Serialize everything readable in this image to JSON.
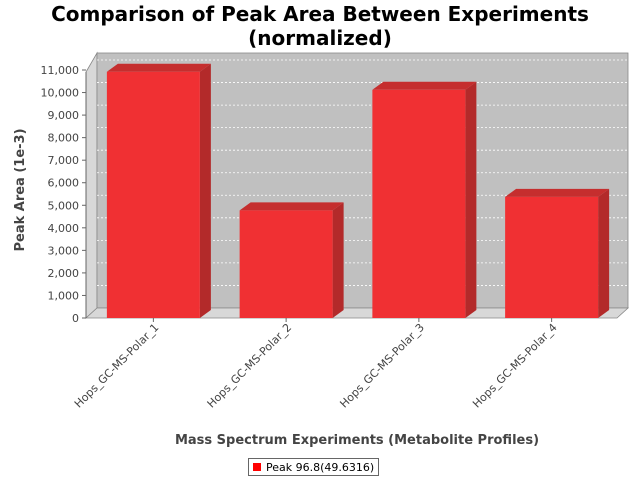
{
  "title": {
    "line1": "Comparison of Peak Area Between Experiments",
    "line2": "(normalized)"
  },
  "legend": {
    "label": "Peak 96.8(49.6316)",
    "color": "#ff0000"
  },
  "colors": {
    "bar": "#f03033",
    "bar_side": "#b32a2a",
    "bar_top": "#c52e2e",
    "plot_back": "#c0c0c0",
    "plot_wall": "#d8d8d8"
  },
  "chart_data": {
    "type": "bar",
    "title": "Comparison of Peak Area Between Experiments (normalized)",
    "xlabel": "Mass Spectrum Experiments (Metabolite Profiles)",
    "ylabel": "Peak Area (1e-3)",
    "categories": [
      "Hops_GC-MS-Polar_1",
      "Hops_GC-MS-Polar_2",
      "Hops_GC-MS-Polar_3",
      "Hops_GC-MS-Polar_4"
    ],
    "series": [
      {
        "name": "Peak 96.8(49.6316)",
        "values": [
          11100,
          4950,
          10300,
          5550
        ]
      }
    ],
    "ylim": [
      0,
      11000
    ],
    "yticks": [
      0,
      1000,
      2000,
      3000,
      4000,
      5000,
      6000,
      7000,
      8000,
      9000,
      10000,
      11000
    ],
    "ytick_labels": [
      "0",
      "1,000",
      "2,000",
      "3,000",
      "4,000",
      "5,000",
      "6,000",
      "7,000",
      "8,000",
      "9,000",
      "10,000",
      "11,000"
    ],
    "grid": true,
    "legend_position": "bottom-center"
  }
}
